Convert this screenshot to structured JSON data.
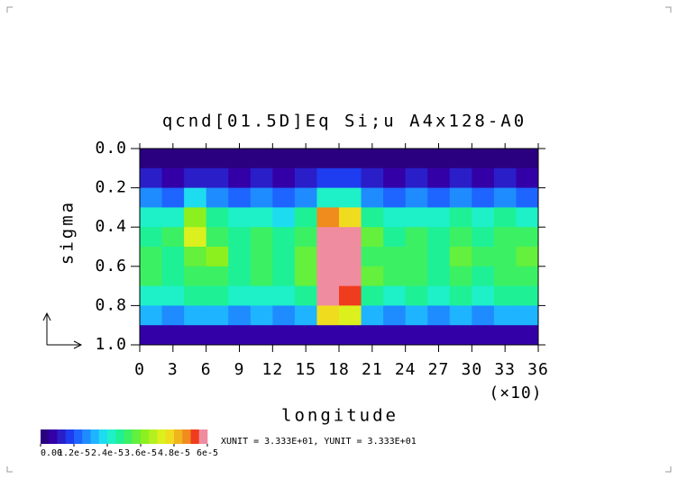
{
  "chart_data": {
    "type": "contour",
    "title": "qcnd[01.5D]Eq Si;u A4x128-A0",
    "ylabel": "sigma",
    "xlabel": "longitude",
    "xscale_note": "(×10)",
    "units_note": "XUNIT = 3.333E+01, YUNIT = 3.333E+01",
    "xlim": [
      0,
      36
    ],
    "xticks": [
      0,
      3,
      6,
      9,
      12,
      15,
      18,
      21,
      24,
      27,
      30,
      33,
      36
    ],
    "ylim": [
      0,
      1
    ],
    "yticks": [
      {
        "value": 0,
        "label": "0.0"
      },
      0.2,
      0.4,
      0.6,
      0.8,
      {
        "value": 1,
        "label": "1.0"
      }
    ],
    "y_inverted": true,
    "x": [
      1,
      3,
      5,
      7,
      9,
      11,
      13,
      15,
      17,
      19,
      21,
      23,
      25,
      27,
      29,
      31,
      33,
      35
    ],
    "y": [
      0.05,
      0.15,
      0.25,
      0.35,
      0.45,
      0.55,
      0.65,
      0.75,
      0.85,
      0.95
    ],
    "z": [
      [
        2e-06,
        2e-06,
        2e-06,
        2e-06,
        2e-06,
        2e-06,
        2e-06,
        2e-06,
        2e-06,
        2e-06,
        2e-06,
        2e-06,
        2e-06,
        2e-06,
        2e-06,
        2e-06,
        2e-06,
        2e-06
      ],
      [
        6e-06,
        5e-06,
        7e-06,
        6e-06,
        5e-06,
        6e-06,
        5e-06,
        7e-06,
        9e-06,
        9e-06,
        6e-06,
        5e-06,
        6e-06,
        5e-06,
        6e-06,
        5e-06,
        6e-06,
        5e-06
      ],
      [
        1.5e-05,
        1.3e-05,
        2.2e-05,
        1.6e-05,
        1.4e-05,
        1.5e-05,
        1.3e-05,
        1.6e-05,
        2.6e-05,
        2.4e-05,
        1.7e-05,
        1.4e-05,
        1.5e-05,
        1.3e-05,
        1.6e-05,
        1.4e-05,
        1.5e-05,
        1.3e-05
      ],
      [
        2.6e-05,
        2.4e-05,
        3.8e-05,
        2.7e-05,
        2.5e-05,
        2.6e-05,
        2.3e-05,
        2.8e-05,
        5.2e-05,
        4.6e-05,
        2.9e-05,
        2.5e-05,
        2.6e-05,
        2.4e-05,
        2.7e-05,
        2.5e-05,
        2.8e-05,
        2.6e-05
      ],
      [
        2.9e-05,
        3.1e-05,
        4.2e-05,
        3e-05,
        2.8e-05,
        3.1e-05,
        2.7e-05,
        3.2e-05,
        6.5e-05,
        6.2e-05,
        3.4e-05,
        2.9e-05,
        3e-05,
        2.8e-05,
        3.2e-05,
        2.9e-05,
        3.1e-05,
        3e-05
      ],
      [
        3e-05,
        2.9e-05,
        3.3e-05,
        3.6e-05,
        2.9e-05,
        3.1e-05,
        2.8e-05,
        3.4e-05,
        6.4e-05,
        6.6e-05,
        3.2e-05,
        3e-05,
        3.1e-05,
        2.9e-05,
        3.3e-05,
        3e-05,
        3.2e-05,
        3.4e-05
      ],
      [
        3e-05,
        2.8e-05,
        3.2e-05,
        3.1e-05,
        2.9e-05,
        3e-05,
        2.7e-05,
        3.3e-05,
        6.2e-05,
        5.8e-05,
        3.5e-05,
        3e-05,
        3.2e-05,
        2.8e-05,
        3.1e-05,
        2.9e-05,
        3e-05,
        3.2e-05
      ],
      [
        2.6e-05,
        2.5e-05,
        2.8e-05,
        2.7e-05,
        2.5e-05,
        2.6e-05,
        2.4e-05,
        2.9e-05,
        6.3e-05,
        5.6e-05,
        2.8e-05,
        2.6e-05,
        2.7e-05,
        2.5e-05,
        2.8e-05,
        2.6e-05,
        2.7e-05,
        2.9e-05
      ],
      [
        1.8e-05,
        1.7e-05,
        1.9e-05,
        1.8e-05,
        1.6e-05,
        1.8e-05,
        1.6e-05,
        2e-05,
        4.5e-05,
        4.2e-05,
        1.9e-05,
        1.7e-05,
        1.8e-05,
        1.6e-05,
        1.9e-05,
        1.7e-05,
        1.8e-05,
        1.9e-05
      ],
      [
        5e-06,
        5e-06,
        5e-06,
        5e-06,
        5e-06,
        5e-06,
        5e-06,
        5e-06,
        5e-06,
        5e-06,
        5e-06,
        5e-06,
        5e-06,
        5e-06,
        5e-06,
        5e-06,
        5e-06,
        5e-06
      ]
    ],
    "zlim": [
      0,
      6e-05
    ],
    "zticks": [
      {
        "value": 0,
        "label": "0.00"
      },
      {
        "value": 1.2e-05,
        "label": "1.2e-5"
      },
      {
        "value": 2.4e-05,
        "label": "2.4e-5"
      },
      {
        "value": 3.6e-05,
        "label": "3.6e-5"
      },
      {
        "value": 4.8e-05,
        "label": "4.8e-5"
      },
      {
        "value": 6e-05,
        "label": "6e-5"
      }
    ],
    "colors": [
      "#2a0080",
      "#3300a8",
      "#2a1ec8",
      "#1e3cf0",
      "#1e64ff",
      "#1e8cff",
      "#1eb4ff",
      "#1edcf0",
      "#1ef0c8",
      "#1ef096",
      "#3cf064",
      "#64f03c",
      "#8cf01e",
      "#b4f01e",
      "#dcf01e",
      "#f0dc1e",
      "#f0b41e",
      "#f08c1e",
      "#f03c1e",
      "#f08ca0"
    ]
  }
}
